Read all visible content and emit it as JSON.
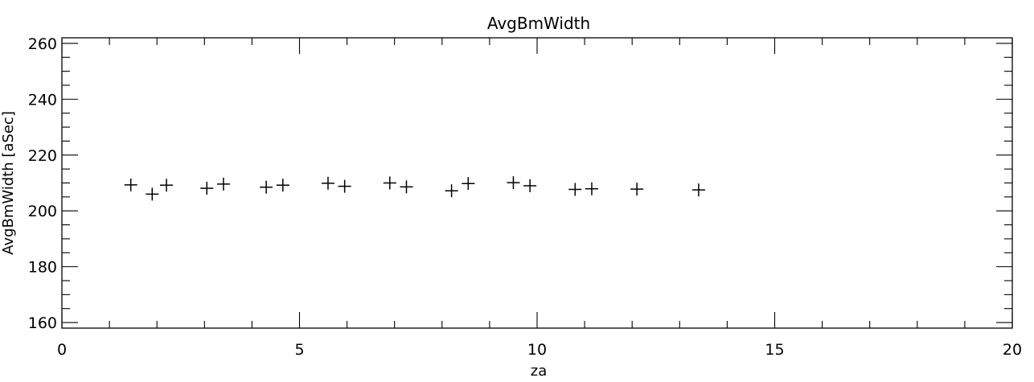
{
  "chart_data": {
    "type": "scatter",
    "title": "AvgBmWidth",
    "xlabel": "za",
    "ylabel": "AvgBmWidth [aSec]",
    "xlim": [
      0,
      20
    ],
    "ylim": [
      158,
      262
    ],
    "x_ticks": [
      0,
      5,
      10,
      15,
      20
    ],
    "x_tick_labels": [
      "0",
      "5",
      "10",
      "15",
      "20"
    ],
    "x_minor_step": 1,
    "y_ticks": [
      160,
      180,
      200,
      220,
      240,
      260
    ],
    "y_tick_labels": [
      "160",
      "180",
      "200",
      "220",
      "240",
      "260"
    ],
    "y_minor_step": 5,
    "grid": false,
    "marker": "plus",
    "color": "#000000",
    "series": [
      {
        "points": [
          {
            "x": 1.45,
            "y": 209.3
          },
          {
            "x": 1.9,
            "y": 206.0
          },
          {
            "x": 2.2,
            "y": 209.2
          },
          {
            "x": 3.05,
            "y": 208.1
          },
          {
            "x": 3.4,
            "y": 209.6
          },
          {
            "x": 4.3,
            "y": 208.5
          },
          {
            "x": 4.65,
            "y": 209.2
          },
          {
            "x": 5.6,
            "y": 209.9
          },
          {
            "x": 5.95,
            "y": 208.8
          },
          {
            "x": 6.9,
            "y": 210.0
          },
          {
            "x": 7.25,
            "y": 208.6
          },
          {
            "x": 8.2,
            "y": 207.2
          },
          {
            "x": 8.55,
            "y": 209.8
          },
          {
            "x": 9.5,
            "y": 210.1
          },
          {
            "x": 9.85,
            "y": 209.0
          },
          {
            "x": 10.8,
            "y": 207.7
          },
          {
            "x": 11.15,
            "y": 207.9
          },
          {
            "x": 12.1,
            "y": 207.8
          },
          {
            "x": 13.4,
            "y": 207.5
          }
        ]
      }
    ]
  }
}
